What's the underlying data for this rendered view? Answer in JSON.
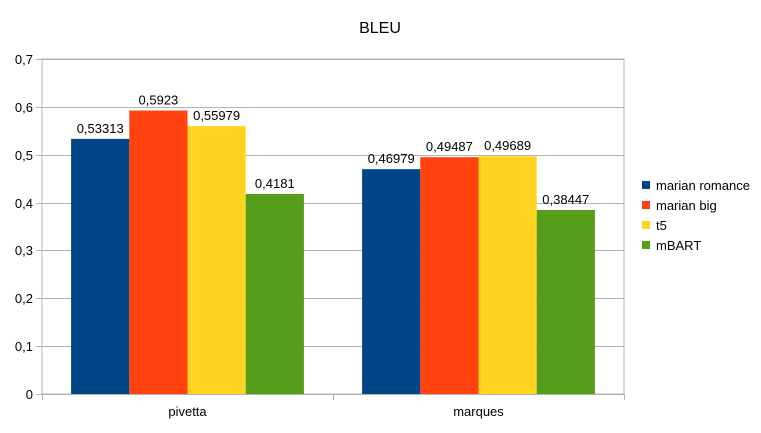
{
  "chart_data": {
    "type": "bar",
    "title": "BLEU",
    "xlabel": "",
    "ylabel": "",
    "categories": [
      "pivetta",
      "marques"
    ],
    "series": [
      {
        "name": "marian romance",
        "color": "#004586",
        "values": [
          0.53313,
          0.46979
        ],
        "labels": [
          "0,53313",
          "0,46979"
        ]
      },
      {
        "name": "marian big",
        "color": "#ff420e",
        "values": [
          0.5923,
          0.49487
        ],
        "labels": [
          "0,5923",
          "0,49487"
        ]
      },
      {
        "name": "t5",
        "color": "#ffd320",
        "values": [
          0.55979,
          0.49689
        ],
        "labels": [
          "0,55979",
          "0,49689"
        ]
      },
      {
        "name": "mBART",
        "color": "#579d1c",
        "values": [
          0.4181,
          0.38447
        ],
        "labels": [
          "0,4181",
          "0,38447"
        ]
      }
    ],
    "ylim": [
      0,
      0.7
    ],
    "yticks": [
      0,
      0.1,
      0.2,
      0.3,
      0.4,
      0.5,
      0.6,
      0.7
    ],
    "ytick_labels": [
      "0",
      "0,1",
      "0,2",
      "0,3",
      "0,4",
      "0,5",
      "0,6",
      "0,7"
    ],
    "grid": true,
    "legend_position": "right"
  }
}
